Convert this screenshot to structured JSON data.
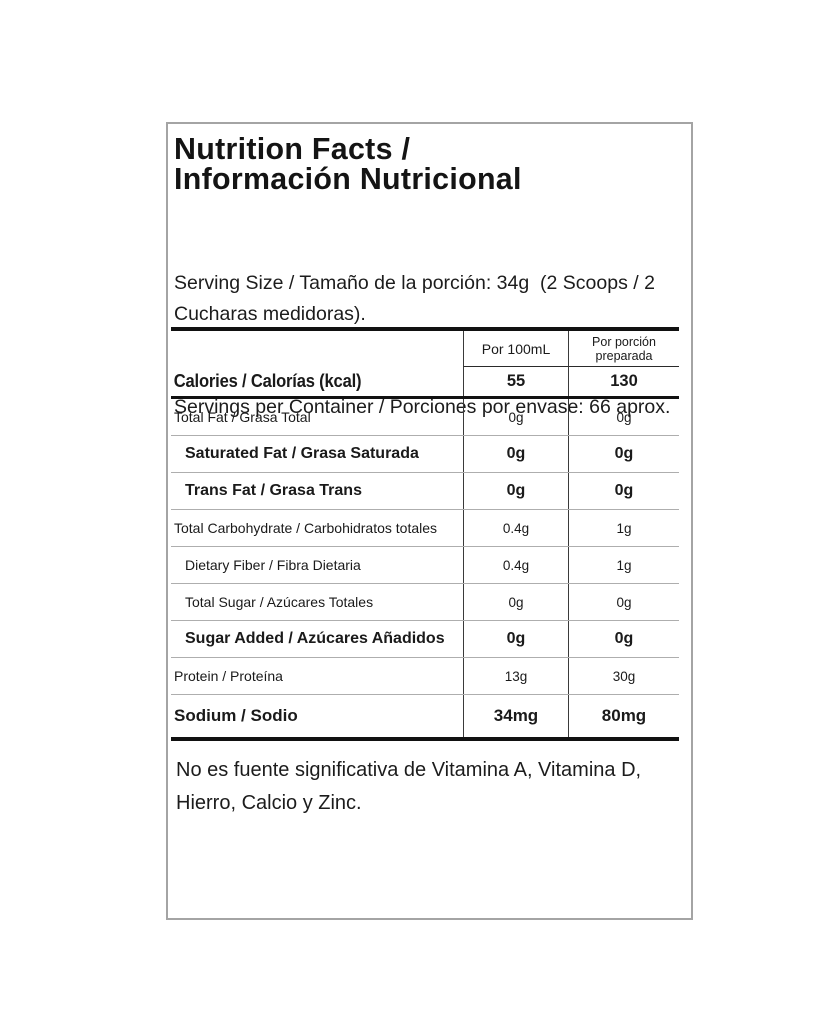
{
  "label": {
    "title_line1": "Nutrition Facts /",
    "title_line2": "Información Nutricional",
    "serving_size": "Serving Size / Tamaño de la porción: 34g  (2 Scoops / 2 Cucharas medidoras).",
    "servings_per_container": "Servings per Container / Porciones por envase: 66 aprox.",
    "columns": [
      "Por 100mL",
      "Por porción preparada"
    ],
    "calories_row": {
      "label": "Calories / Calorías (kcal)",
      "per_100ml": "55",
      "per_portion": "130"
    },
    "rows": [
      {
        "label": "Total Fat / Grasa Total",
        "per_100ml": "0g",
        "per_portion": "0g"
      },
      {
        "label": "Saturated Fat / Grasa Saturada",
        "per_100ml": "0g",
        "per_portion": "0g"
      },
      {
        "label": "Trans Fat / Grasa Trans",
        "per_100ml": "0g",
        "per_portion": "0g"
      },
      {
        "label": "Total Carbohydrate / Carbohidratos totales",
        "per_100ml": "0.4g",
        "per_portion": "1g"
      },
      {
        "label": "Dietary Fiber / Fibra Dietaria",
        "per_100ml": "0.4g",
        "per_portion": "1g"
      },
      {
        "label": "Total Sugar / Azúcares Totales",
        "per_100ml": "0g",
        "per_portion": "0g"
      },
      {
        "label": "Sugar Added / Azúcares Añadidos",
        "per_100ml": "0g",
        "per_portion": "0g"
      },
      {
        "label": "Protein / Proteína",
        "per_100ml": "13g",
        "per_portion": "30g"
      },
      {
        "label": "Sodium / Sodio",
        "per_100ml": "34mg",
        "per_portion": "80mg"
      }
    ],
    "footnote": "No es fuente significativa de Vitamina A, Vitamina D, Hierro, Calcio y Zinc.",
    "colors": {
      "background": "#ffffff",
      "text": "#1a1a1a",
      "thick_rule": "#111111",
      "thin_rule": "#aeaeae",
      "column_rule": "#3a3a3a",
      "box_border": "#a4a4a4"
    }
  }
}
